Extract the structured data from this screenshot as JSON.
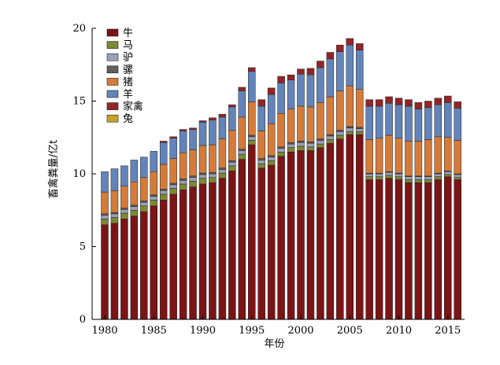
{
  "chart_data": {
    "type": "bar",
    "stacked": true,
    "xlabel": "年份",
    "ylabel": "畜禽粪量/亿t",
    "ylim": [
      0,
      20
    ],
    "yticks": [
      0,
      5,
      10,
      15,
      20
    ],
    "xticks": [
      1980,
      1985,
      1990,
      1995,
      2000,
      2005,
      2010,
      2015
    ],
    "grid": false,
    "legend_position": "top-left",
    "x": [
      1980,
      1981,
      1982,
      1983,
      1984,
      1985,
      1986,
      1987,
      1988,
      1989,
      1990,
      1991,
      1992,
      1993,
      1994,
      1995,
      1996,
      1997,
      1998,
      1999,
      2000,
      2001,
      2002,
      2003,
      2004,
      2005,
      2006,
      2007,
      2008,
      2009,
      2010,
      2011,
      2012,
      2013,
      2014,
      2015,
      2016
    ],
    "series": [
      {
        "name": "牛",
        "color": "#7b1416",
        "values": [
          6.5,
          6.6,
          6.9,
          7.1,
          7.4,
          7.8,
          8.2,
          8.6,
          8.9,
          9.1,
          9.3,
          9.4,
          9.7,
          10.2,
          11.0,
          12.0,
          10.4,
          10.6,
          11.2,
          11.5,
          11.6,
          11.6,
          11.8,
          12.1,
          12.4,
          12.7,
          12.7,
          9.6,
          9.6,
          9.7,
          9.6,
          9.4,
          9.4,
          9.4,
          9.6,
          9.8,
          9.6
        ]
      },
      {
        "name": "马",
        "color": "#7d8734",
        "values": [
          0.4,
          0.4,
          0.4,
          0.4,
          0.4,
          0.4,
          0.4,
          0.4,
          0.4,
          0.4,
          0.4,
          0.35,
          0.35,
          0.35,
          0.35,
          0.3,
          0.3,
          0.3,
          0.3,
          0.3,
          0.3,
          0.25,
          0.25,
          0.25,
          0.25,
          0.2,
          0.2,
          0.2,
          0.2,
          0.2,
          0.2,
          0.2,
          0.2,
          0.2,
          0.2,
          0.15,
          0.15
        ]
      },
      {
        "name": "驴",
        "color": "#9aa0b8",
        "values": [
          0.25,
          0.25,
          0.25,
          0.25,
          0.25,
          0.25,
          0.25,
          0.25,
          0.25,
          0.25,
          0.25,
          0.25,
          0.25,
          0.25,
          0.25,
          0.25,
          0.25,
          0.25,
          0.25,
          0.25,
          0.25,
          0.25,
          0.25,
          0.25,
          0.25,
          0.25,
          0.2,
          0.2,
          0.2,
          0.2,
          0.2,
          0.2,
          0.2,
          0.2,
          0.2,
          0.2,
          0.2
        ]
      },
      {
        "name": "骡",
        "color": "#5f5f5f",
        "values": [
          0.1,
          0.1,
          0.1,
          0.1,
          0.1,
          0.1,
          0.1,
          0.1,
          0.1,
          0.1,
          0.1,
          0.1,
          0.1,
          0.1,
          0.1,
          0.1,
          0.1,
          0.1,
          0.1,
          0.1,
          0.1,
          0.1,
          0.1,
          0.1,
          0.1,
          0.1,
          0.1,
          0.05,
          0.05,
          0.05,
          0.05,
          0.05,
          0.05,
          0.05,
          0.05,
          0.05,
          0.05
        ]
      },
      {
        "name": "猪",
        "color": "#d47b3a",
        "values": [
          1.5,
          1.5,
          1.5,
          1.6,
          1.6,
          1.6,
          1.7,
          1.7,
          1.8,
          1.8,
          1.9,
          1.9,
          2.0,
          2.1,
          2.2,
          2.3,
          1.9,
          2.2,
          2.3,
          2.3,
          2.4,
          2.4,
          2.5,
          2.6,
          2.7,
          2.8,
          2.6,
          2.3,
          2.4,
          2.5,
          2.4,
          2.4,
          2.4,
          2.5,
          2.5,
          2.3,
          2.3
        ]
      },
      {
        "name": "羊",
        "color": "#6384b8",
        "values": [
          1.4,
          1.5,
          1.4,
          1.5,
          1.4,
          1.4,
          1.5,
          1.4,
          1.5,
          1.4,
          1.6,
          1.7,
          1.5,
          1.6,
          1.8,
          2.1,
          1.7,
          2.0,
          2.1,
          2.0,
          2.2,
          2.2,
          2.4,
          2.6,
          2.7,
          2.8,
          2.7,
          2.3,
          2.2,
          2.2,
          2.3,
          2.4,
          2.2,
          2.2,
          2.2,
          2.4,
          2.2
        ]
      },
      {
        "name": "家禽",
        "color": "#922526",
        "values": [
          0,
          0,
          0,
          0,
          0,
          0,
          0.1,
          0.1,
          0.1,
          0.1,
          0.1,
          0.15,
          0.2,
          0.15,
          0.25,
          0.25,
          0.45,
          0.45,
          0.45,
          0.35,
          0.35,
          0.45,
          0.45,
          0.45,
          0.45,
          0.45,
          0.45,
          0.45,
          0.45,
          0.45,
          0.45,
          0.45,
          0.45,
          0.45,
          0.45,
          0.45,
          0.45
        ]
      },
      {
        "name": "兔",
        "color": "#c9a227",
        "values": [
          0,
          0,
          0,
          0,
          0,
          0,
          0,
          0,
          0,
          0,
          0,
          0,
          0,
          0,
          0,
          0,
          0,
          0,
          0,
          0,
          0,
          0,
          0,
          0,
          0,
          0,
          0,
          0,
          0,
          0,
          0,
          0,
          0,
          0,
          0,
          0,
          0
        ]
      }
    ]
  }
}
